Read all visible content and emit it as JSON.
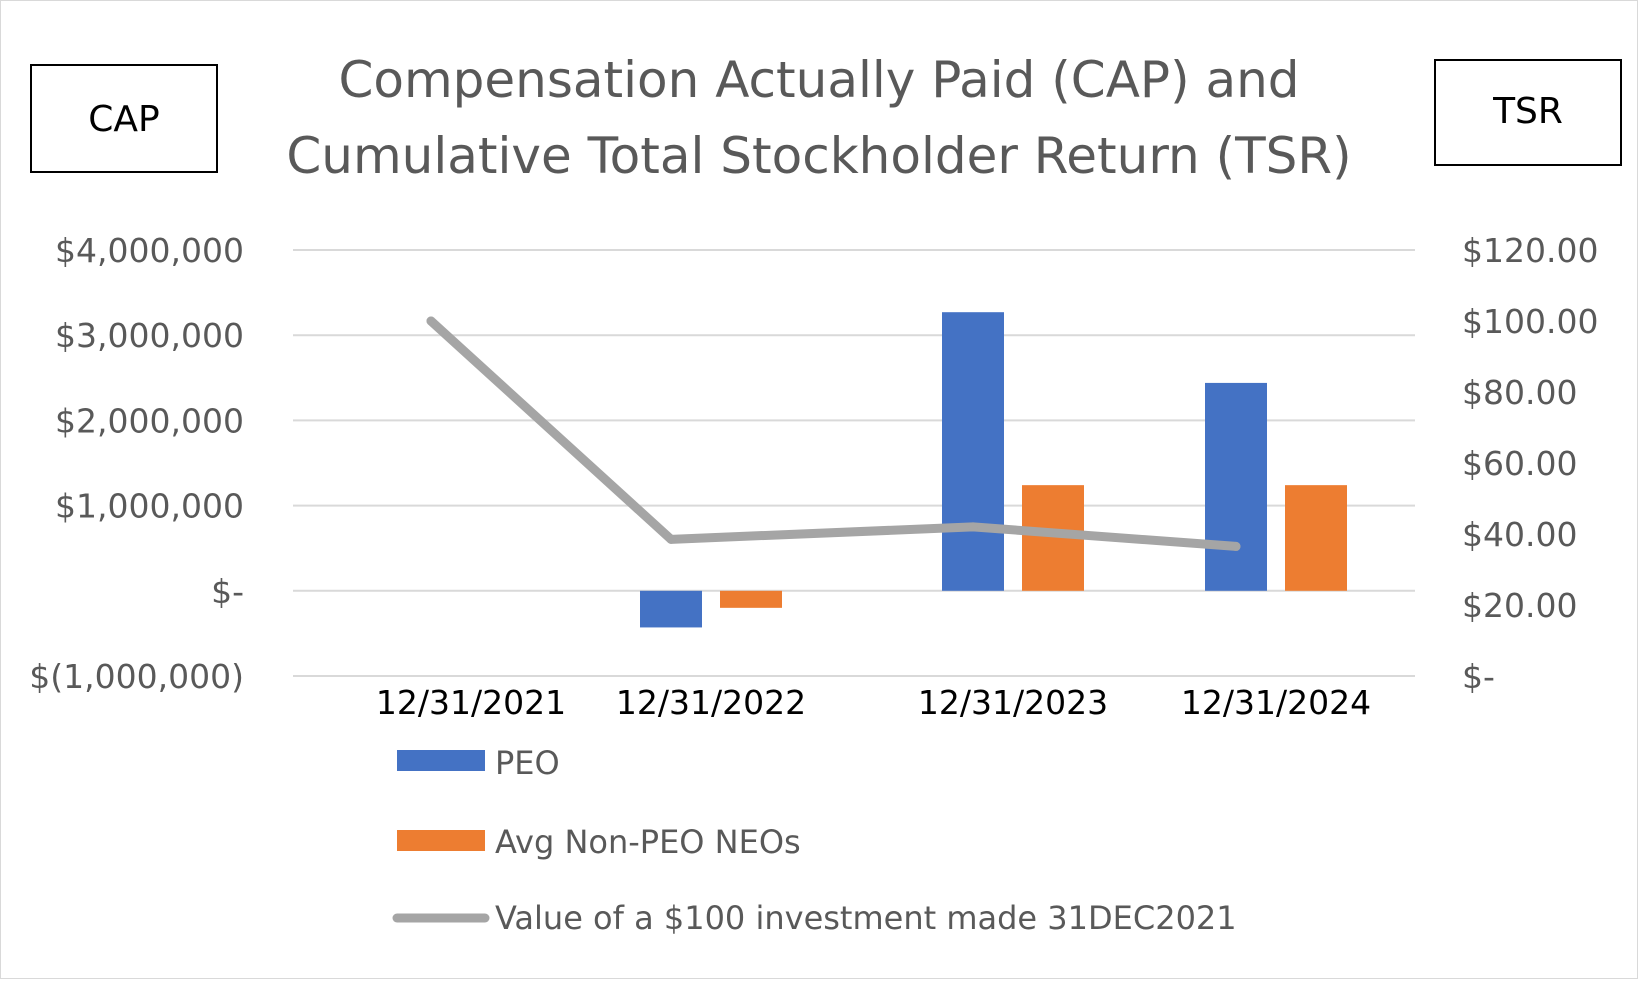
{
  "chart_data": {
    "type": "bar",
    "title_lines": [
      "Compensation Actually Paid (CAP) and",
      "Cumulative Total Stockholder Return (TSR)"
    ],
    "left_axis_title": "CAP",
    "right_axis_title": "TSR",
    "categories": [
      "12/31/2021",
      "12/31/2022",
      "12/31/2023",
      "12/31/2024"
    ],
    "left_axis": {
      "ylim": [
        -1000000,
        4000000
      ],
      "ticks": [
        -1000000,
        0,
        1000000,
        2000000,
        3000000,
        4000000
      ],
      "tick_labels": [
        "$(1,000,000)",
        "$-",
        "$1,000,000",
        "$2,000,000",
        "$3,000,000",
        "$4,000,000"
      ]
    },
    "right_axis": {
      "ylim": [
        0,
        120
      ],
      "ticks": [
        0,
        20,
        40,
        60,
        80,
        100,
        120
      ],
      "tick_labels": [
        "$-",
        "$20.00",
        "$40.00",
        "$60.00",
        "$80.00",
        "$100.00",
        "$120.00"
      ]
    },
    "series": [
      {
        "name": "PEO",
        "type": "bar",
        "axis": "left",
        "color": "#4472c4",
        "values": [
          null,
          -430000,
          3270000,
          2440000
        ]
      },
      {
        "name": "Avg Non-PEO NEOs",
        "type": "bar",
        "axis": "left",
        "color": "#ed7d31",
        "values": [
          null,
          -200000,
          1240000,
          1240000
        ]
      },
      {
        "name": "Value of a $100 investment made 31DEC2021",
        "type": "line",
        "axis": "right",
        "color": "#a5a5a5",
        "values": [
          100,
          38.5,
          42,
          36.5
        ]
      }
    ],
    "grid": true,
    "legend_position": "bottom-left"
  }
}
